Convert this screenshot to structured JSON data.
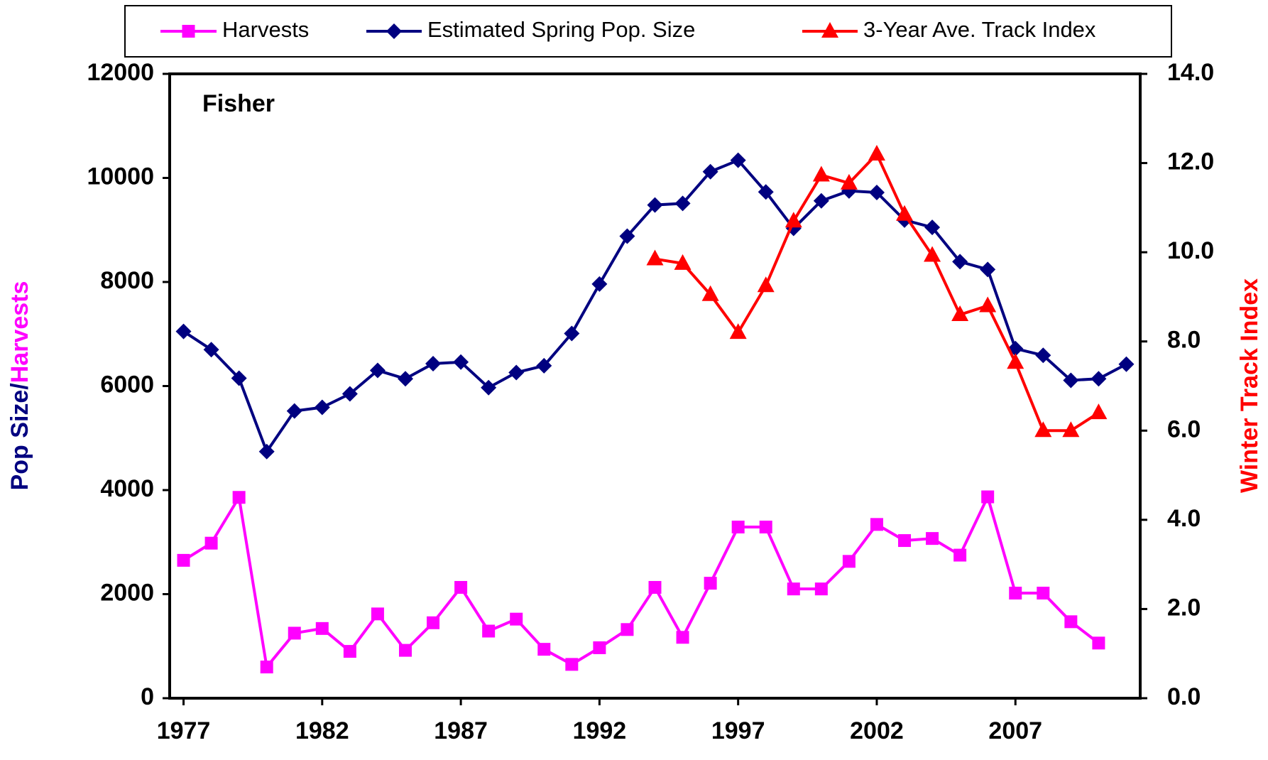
{
  "chart_data": {
    "type": "line",
    "title": "Fisher",
    "ylabel": [
      "Pop Size/",
      "Harvests"
    ],
    "y2label": "Winter Track Index",
    "x": [
      1977,
      1978,
      1979,
      1980,
      1981,
      1982,
      1983,
      1984,
      1985,
      1986,
      1987,
      1988,
      1989,
      1990,
      1991,
      1992,
      1993,
      1994,
      1995,
      1996,
      1997,
      1998,
      1999,
      2000,
      2001,
      2002,
      2003,
      2004,
      2005,
      2006,
      2007,
      2008,
      2009,
      2010,
      2011
    ],
    "xlim": [
      1976.5,
      2011.5
    ],
    "xticks": [
      1977,
      1982,
      1987,
      1992,
      1997,
      2002,
      2007
    ],
    "ylim": [
      0,
      12000
    ],
    "yticks": [
      0,
      2000,
      4000,
      6000,
      8000,
      10000,
      12000
    ],
    "y2lim": [
      0,
      14
    ],
    "y2ticks": [
      {
        "value": 0,
        "label": "0.0"
      },
      {
        "value": 2,
        "label": "2.0"
      },
      {
        "value": 4,
        "label": "4.0"
      },
      {
        "value": 6,
        "label": "6.0"
      },
      {
        "value": 8,
        "label": "8.0"
      },
      {
        "value": 10,
        "label": "10.0"
      },
      {
        "value": 12,
        "label": "12.0"
      },
      {
        "value": 14,
        "label": "14.0"
      }
    ],
    "legend": "top",
    "series": [
      {
        "name": "Harvests",
        "color": "#ff00ff",
        "marker": "square",
        "values": [
          2650,
          2980,
          3860,
          600,
          1250,
          1340,
          900,
          1620,
          920,
          1450,
          2130,
          1290,
          1520,
          940,
          650,
          970,
          1320,
          2130,
          1170,
          2210,
          3290,
          3290,
          2100,
          2100,
          2630,
          3340,
          3030,
          3070,
          2750,
          3870,
          2020,
          2020,
          1470,
          1060,
          null
        ]
      },
      {
        "name": "Estimated Spring Pop. Size",
        "color": "#000080",
        "marker": "diamond",
        "values": [
          7050,
          6700,
          6150,
          4740,
          5520,
          5590,
          5850,
          6300,
          6140,
          6430,
          6460,
          5970,
          6260,
          6390,
          7010,
          7960,
          8880,
          9480,
          9510,
          10120,
          10340,
          9730,
          9030,
          9560,
          9750,
          9720,
          9190,
          9050,
          8390,
          8240,
          6720,
          6590,
          6110,
          6140,
          6420
        ]
      },
      {
        "name": "3-Year Ave. Track Index",
        "color": "#ff0000",
        "marker": "triangle",
        "axis": "y2",
        "values": [
          null,
          null,
          null,
          null,
          null,
          null,
          null,
          null,
          null,
          null,
          null,
          null,
          null,
          null,
          null,
          null,
          null,
          9.85,
          9.75,
          9.05,
          8.2,
          9.25,
          10.7,
          11.73,
          11.55,
          12.2,
          10.85,
          9.93,
          8.6,
          8.8,
          7.53,
          6.0,
          6.0,
          6.4,
          null
        ]
      }
    ]
  }
}
